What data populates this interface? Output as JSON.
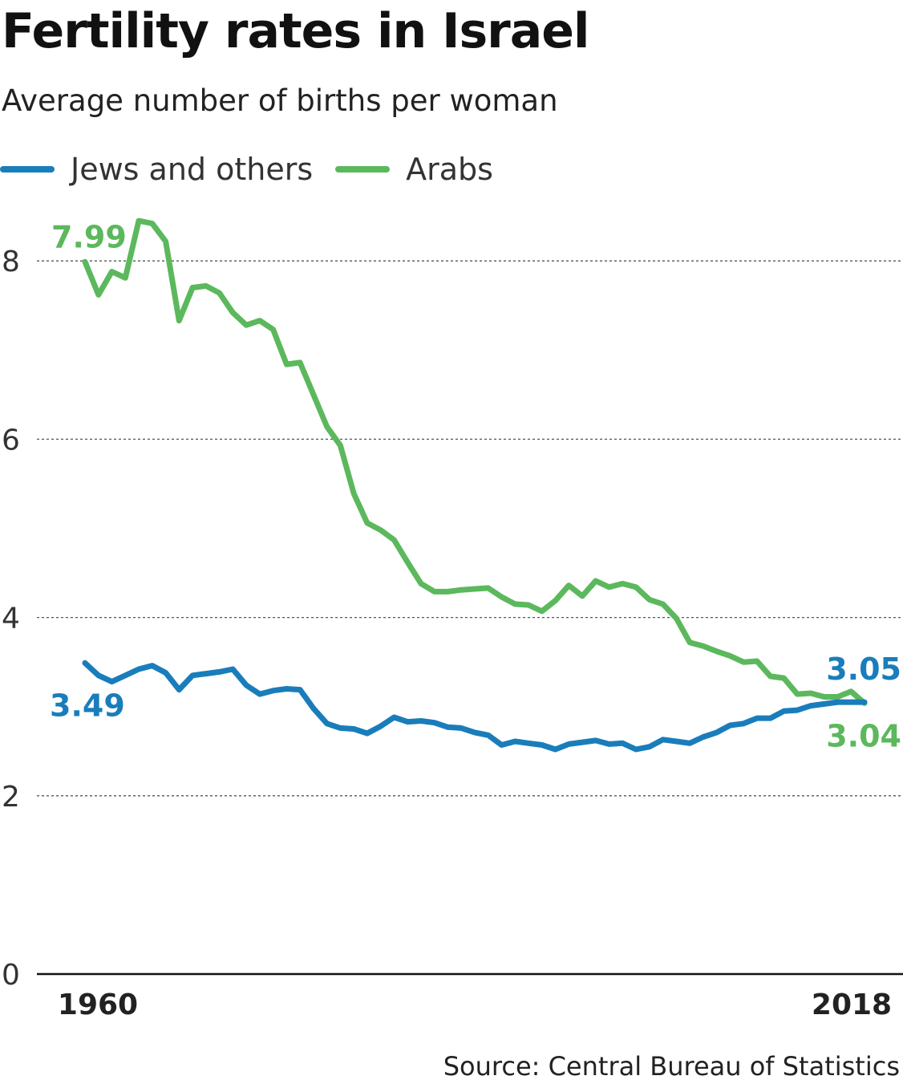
{
  "header": {
    "title": "Fertility rates in Israel",
    "subtitle": "Average number of births per woman"
  },
  "footer": {
    "source": "Source: Central Bureau of Statistics"
  },
  "colors": {
    "jews": "#1a7dbb",
    "arabs": "#5cb85c",
    "grid": "#555555",
    "axis": "#111111"
  },
  "chart_data": {
    "type": "line",
    "title": "Fertility rates in Israel",
    "subtitle": "Average number of births per woman",
    "xlabel": "",
    "ylabel": "",
    "x_tick_labels": [
      "1960",
      "2018"
    ],
    "y_ticks": [
      0,
      2,
      4,
      6,
      8
    ],
    "y_tick_labels": [
      "0",
      "2",
      "4",
      "6",
      "8"
    ],
    "ylim": [
      0,
      8.6
    ],
    "xlim": [
      1960,
      2018
    ],
    "grid": true,
    "legend_position": "top-left",
    "x": [
      1960,
      1961,
      1962,
      1963,
      1964,
      1965,
      1966,
      1967,
      1968,
      1969,
      1970,
      1971,
      1972,
      1973,
      1974,
      1975,
      1976,
      1977,
      1978,
      1979,
      1980,
      1981,
      1982,
      1983,
      1984,
      1985,
      1986,
      1987,
      1988,
      1989,
      1990,
      1991,
      1992,
      1993,
      1994,
      1995,
      1996,
      1997,
      1998,
      1999,
      2000,
      2001,
      2002,
      2003,
      2004,
      2005,
      2006,
      2007,
      2008,
      2009,
      2010,
      2011,
      2012,
      2013,
      2014,
      2015,
      2016,
      2017,
      2018
    ],
    "series": [
      {
        "name": "Jews and others",
        "color": "#1a7dbb",
        "start_label": "3.49",
        "end_label": "3.05",
        "values": [
          3.49,
          3.35,
          3.28,
          3.35,
          3.42,
          3.46,
          3.38,
          3.19,
          3.35,
          3.37,
          3.39,
          3.42,
          3.24,
          3.14,
          3.18,
          3.2,
          3.19,
          2.98,
          2.81,
          2.76,
          2.75,
          2.7,
          2.78,
          2.88,
          2.83,
          2.84,
          2.82,
          2.77,
          2.76,
          2.71,
          2.68,
          2.57,
          2.61,
          2.59,
          2.57,
          2.52,
          2.58,
          2.6,
          2.62,
          2.58,
          2.59,
          2.52,
          2.55,
          2.63,
          2.61,
          2.59,
          2.66,
          2.71,
          2.79,
          2.81,
          2.87,
          2.87,
          2.95,
          2.96,
          3.01,
          3.03,
          3.05,
          3.05,
          3.05
        ]
      },
      {
        "name": "Arabs",
        "color": "#5cb85c",
        "start_label": "7.99",
        "end_label": "3.04",
        "values": [
          7.99,
          7.62,
          7.88,
          7.81,
          8.45,
          8.42,
          8.22,
          7.33,
          7.7,
          7.72,
          7.64,
          7.42,
          7.28,
          7.33,
          7.23,
          6.84,
          6.86,
          6.5,
          6.14,
          5.93,
          5.39,
          5.06,
          4.98,
          4.87,
          4.62,
          4.38,
          4.29,
          4.29,
          4.31,
          4.32,
          4.33,
          4.23,
          4.15,
          4.14,
          4.07,
          4.19,
          4.36,
          4.24,
          4.41,
          4.34,
          4.38,
          4.34,
          4.2,
          4.15,
          3.99,
          3.72,
          3.68,
          3.62,
          3.57,
          3.5,
          3.51,
          3.34,
          3.32,
          3.14,
          3.15,
          3.11,
          3.11,
          3.17,
          3.04
        ]
      }
    ]
  }
}
